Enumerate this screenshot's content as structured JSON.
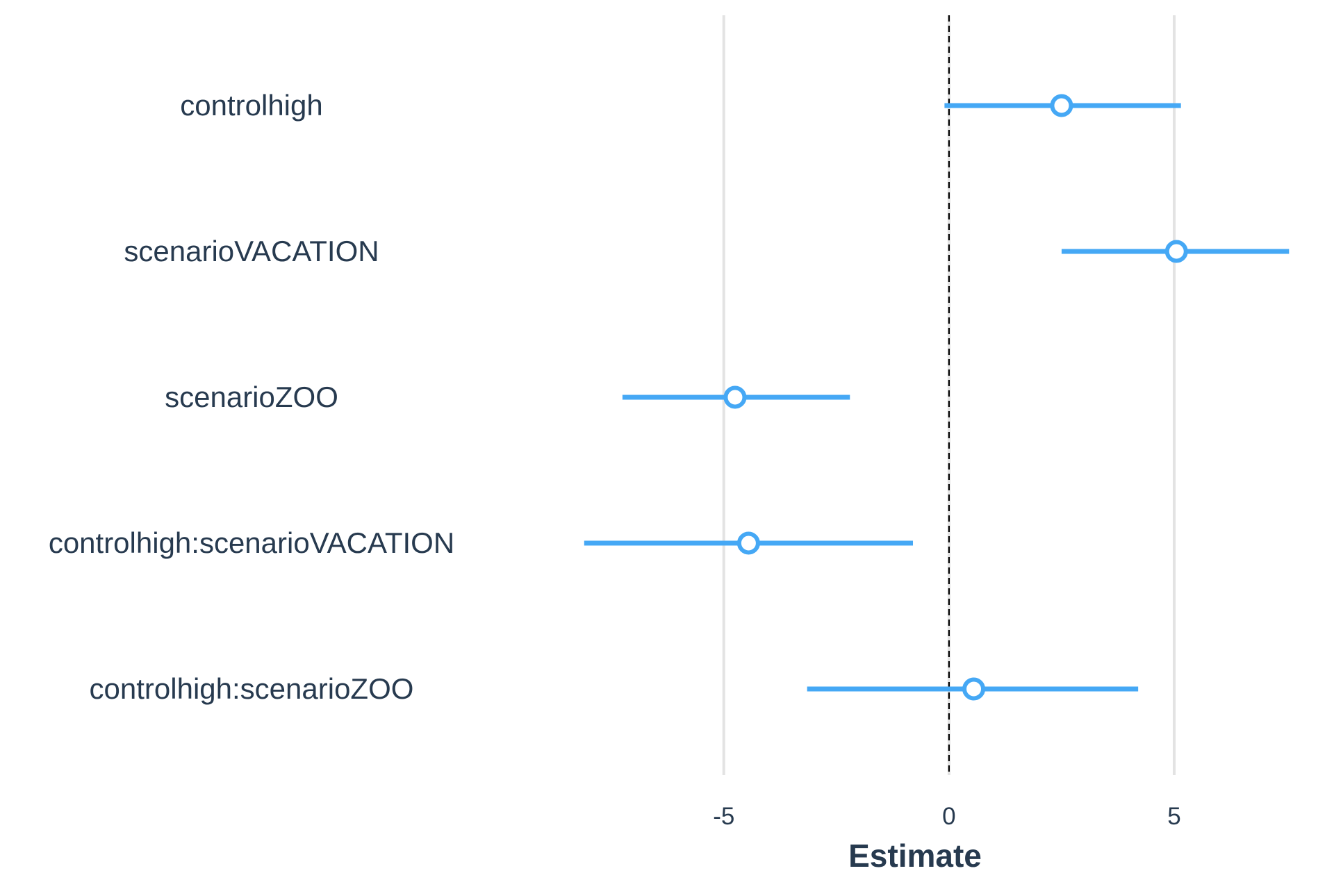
{
  "chart_data": {
    "type": "scatter",
    "subtype": "coefficient-plot",
    "xlabel": "Estimate",
    "xlim": [
      -9.3,
      7.9
    ],
    "xticks": [
      "-5",
      "0",
      "5"
    ],
    "xtick_values": [
      -5,
      0,
      5
    ],
    "reference_line": 0,
    "grid": "vertical major",
    "terms": [
      {
        "label": "controlhigh",
        "estimate": 2.5,
        "low": -0.1,
        "high": 5.15
      },
      {
        "label": "scenarioVACATION",
        "estimate": 5.05,
        "high": 7.55,
        "low": 2.5
      },
      {
        "label": "scenarioZOO",
        "estimate": -4.75,
        "low": -7.25,
        "high": -2.2
      },
      {
        "label": "controlhigh:scenarioVACATION",
        "estimate": -4.45,
        "low": -8.1,
        "high": -0.8
      },
      {
        "label": "controlhigh:scenarioZOO",
        "estimate": 0.55,
        "low": -3.15,
        "high": 4.2
      }
    ],
    "colors": {
      "series": "#45a8f5",
      "text": "#273a4f",
      "grid": "#e3e3e3",
      "reference": "#000000"
    }
  }
}
